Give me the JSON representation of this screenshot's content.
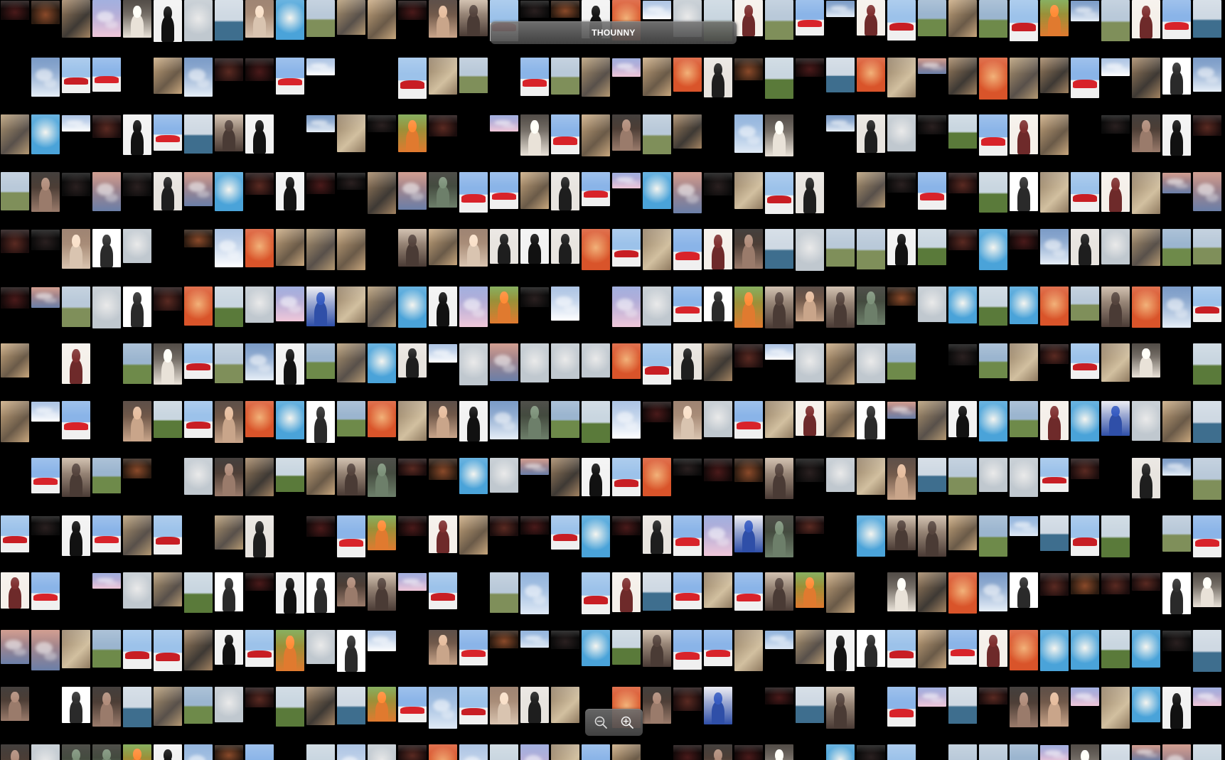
{
  "window": {
    "title": "THOUNNY"
  },
  "zoom": {
    "zoom_out_icon": "zoom-out-icon",
    "zoom_in_icon": "zoom-in-icon"
  },
  "gallery": {
    "kinds": [
      "portrait",
      "sky",
      "landscape",
      "street",
      "dark",
      "fashion",
      "car",
      "glow"
    ],
    "palettes": {
      "portrait": [
        [
          "#c9a58a",
          "#3b2a22"
        ],
        [
          "#e9e2d8",
          "#2d2620"
        ],
        [
          "#9a7b6b",
          "#1c1714"
        ],
        [
          "#2f4fa8",
          "#e8e8f0"
        ],
        [
          "#6d7f6a",
          "#2a2a24"
        ],
        [
          "#e07a2f",
          "#6f9e3e"
        ],
        [
          "#d9c4b0",
          "#8a6a55"
        ],
        [
          "#4a3b35",
          "#c8b4a0"
        ]
      ],
      "sky": [
        [
          "#7ea6d6",
          "#dfe9f5"
        ],
        [
          "#8f9fd8",
          "#f0c7d9"
        ],
        [
          "#5f86bb",
          "#e6eef7"
        ],
        [
          "#9cb8de",
          "#ffffff"
        ],
        [
          "#c88a7a",
          "#6b7fa8"
        ]
      ],
      "landscape": [
        [
          "#6e8a4a",
          "#9bb5cf"
        ],
        [
          "#5a7a3a",
          "#c9d6e0"
        ],
        [
          "#7f8f5a",
          "#b9c9d9"
        ],
        [
          "#3e6e8e",
          "#cfd9e3"
        ]
      ],
      "street": [
        [
          "#b59a73",
          "#58504a"
        ],
        [
          "#a38462",
          "#3e3934"
        ],
        [
          "#8f7a60",
          "#d2c0a0"
        ],
        [
          "#c9a87e",
          "#6a5a48"
        ]
      ],
      "dark": [
        [
          "#1a0c0c",
          "#5a2a22"
        ],
        [
          "#2a1a10",
          "#8a4a2a"
        ],
        [
          "#120808",
          "#4a1a1a"
        ],
        [
          "#0a0a0a",
          "#2a2020"
        ]
      ],
      "fashion": [
        [
          "#f2f2f2",
          "#111111"
        ],
        [
          "#e8e4df",
          "#1e1e1e"
        ],
        [
          "#f5f0ea",
          "#6e2a2a"
        ],
        [
          "#ffffff",
          "#2a2a2a"
        ]
      ],
      "car": [
        [
          "#8ab4e8",
          "#d8232a"
        ],
        [
          "#9cc2ea",
          "#c81e24"
        ]
      ],
      "glow": [
        [
          "#4aa3d9",
          "#f5f5f0"
        ],
        [
          "#d9542a",
          "#f2b27a"
        ],
        [
          "#c0c8cf",
          "#eaeaea"
        ]
      ]
    }
  }
}
